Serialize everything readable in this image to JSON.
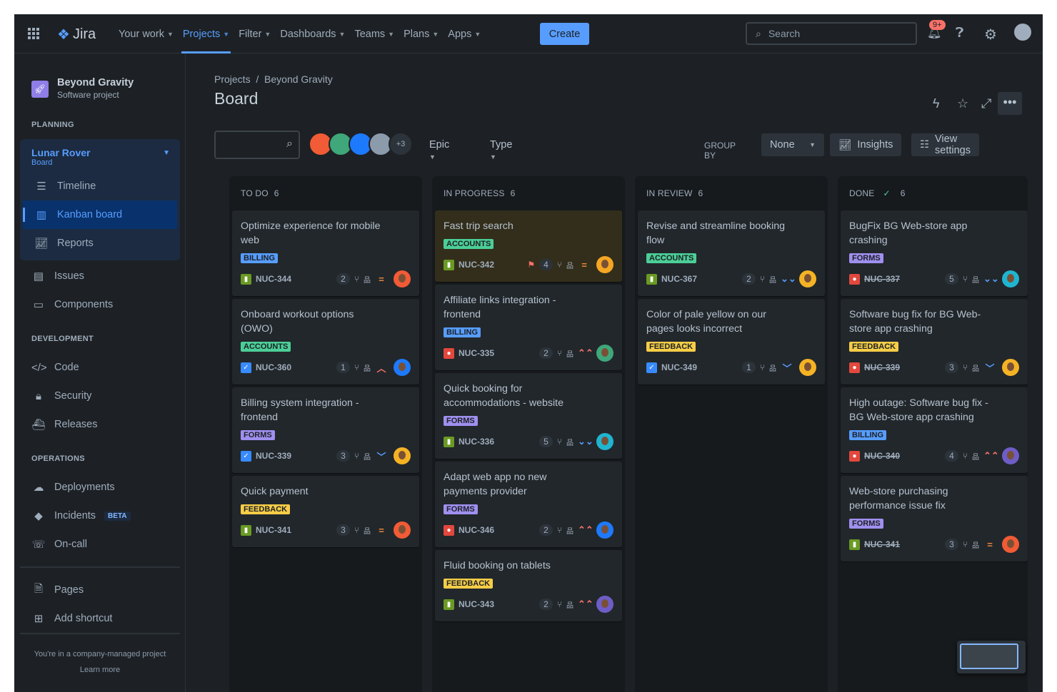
{
  "nav": {
    "logo": "Jira",
    "items": [
      {
        "label": "Your work"
      },
      {
        "label": "Projects",
        "active": true
      },
      {
        "label": "Filter"
      },
      {
        "label": "Dashboards"
      },
      {
        "label": "Teams"
      },
      {
        "label": "Plans"
      },
      {
        "label": "Apps"
      }
    ],
    "create": "Create",
    "search_placeholder": "Search",
    "notifications_badge": "9+"
  },
  "sidebar": {
    "project_name": "Beyond Gravity",
    "project_type": "Software project",
    "planning": "PLANNING",
    "board_name": "Lunar Rover",
    "board_sub": "Board",
    "timeline": "Timeline",
    "kanban": "Kanban board",
    "reports": "Reports",
    "issues": "Issues",
    "components": "Components",
    "development": "DEVELOPMENT",
    "code": "Code",
    "security": "Security",
    "releases": "Releases",
    "operations": "OPERATIONS",
    "deployments": "Deployments",
    "incidents": "Incidents",
    "beta": "BETA",
    "oncall": "On-call",
    "pages": "Pages",
    "add_shortcut": "Add shortcut",
    "managed": "You're in a company-managed project",
    "learn_more": "Learn more"
  },
  "header": {
    "crumb_projects": "Projects",
    "crumb_sep": "/",
    "crumb_project": "Beyond Gravity",
    "title": "Board"
  },
  "toolbar": {
    "more_avatars": "+3",
    "epic": "Epic",
    "type": "Type",
    "group_by": "GROUP BY",
    "group_value": "None",
    "insights": "Insights",
    "view_settings": "View settings"
  },
  "colors": {
    "BILLING": "#579dff",
    "ACCOUNTS": "#4bce97",
    "FORMS": "#9f8fef",
    "FEEDBACK": "#f5cd47",
    "story": "#6a9a23",
    "task": "#388bff",
    "bug": "#e2483d"
  },
  "columns": [
    {
      "title": "TO DO",
      "count": "6",
      "cards": [
        {
          "title": "Optimize experience for mobile web",
          "label": "BILLING",
          "type": "story",
          "key": "NUC-344",
          "count": "2",
          "priority": "medium",
          "avatar": "#f15b35"
        },
        {
          "title": "Onboard workout options (OWO)",
          "label": "ACCOUNTS",
          "type": "task",
          "key": "NUC-360",
          "count": "1",
          "priority": "high",
          "avatar": "#1d7afc"
        },
        {
          "title": "Billing system integration - frontend",
          "label": "FORMS",
          "type": "task",
          "key": "NUC-339",
          "count": "3",
          "priority": "low",
          "avatar": "#f5b324"
        },
        {
          "title": "Quick payment",
          "label": "FEEDBACK",
          "type": "story",
          "key": "NUC-341",
          "count": "3",
          "priority": "medium",
          "avatar": "#f15b35"
        }
      ]
    },
    {
      "title": "IN PROGRESS",
      "count": "6",
      "cards": [
        {
          "title": "Fast trip search",
          "label": "ACCOUNTS",
          "type": "story",
          "key": "NUC-342",
          "count": "4",
          "priority": "medium",
          "avatar": "#f5a623",
          "flagged": true,
          "highlighted": true
        },
        {
          "title": "Affiliate links integration - frontend",
          "label": "BILLING",
          "type": "bug",
          "key": "NUC-335",
          "count": "2",
          "priority": "highest",
          "avatar": "#3fa77a"
        },
        {
          "title": "Quick booking for accommodations - website",
          "label": "FORMS",
          "type": "story",
          "key": "NUC-336",
          "count": "5",
          "priority": "lowest",
          "avatar": "#1fb5d0"
        },
        {
          "title": "Adapt web app no new payments provider",
          "label": "FORMS",
          "type": "bug",
          "key": "NUC-346",
          "count": "2",
          "priority": "highest",
          "avatar": "#1d7afc"
        },
        {
          "title": "Fluid booking on tablets",
          "label": "FEEDBACK",
          "type": "story",
          "key": "NUC-343",
          "count": "2",
          "priority": "highest",
          "avatar": "#6e5dc6"
        }
      ]
    },
    {
      "title": "IN REVIEW",
      "count": "6",
      "cards": [
        {
          "title": "Revise and streamline booking flow",
          "label": "ACCOUNTS",
          "type": "story",
          "key": "NUC-367",
          "count": "2",
          "priority": "lowest",
          "avatar": "#f5b324"
        },
        {
          "title": "Color of pale yellow on our pages looks incorrect",
          "label": "FEEDBACK",
          "type": "task",
          "key": "NUC-349",
          "count": "1",
          "priority": "low",
          "avatar": "#f5b324"
        }
      ]
    },
    {
      "title": "DONE",
      "count": "6",
      "done": true,
      "cards": [
        {
          "title": "BugFix BG Web-store app crashing",
          "label": "FORMS",
          "type": "bug",
          "key": "NUC-337",
          "count": "5",
          "priority": "lowest",
          "avatar": "#1fb5d0"
        },
        {
          "title": "Software bug fix for BG Web-store app crashing",
          "label": "FEEDBACK",
          "type": "bug",
          "key": "NUC-339",
          "count": "3",
          "priority": "low",
          "avatar": "#f5b324"
        },
        {
          "title": "High outage: Software bug fix - BG Web-store app crashing",
          "label": "BILLING",
          "type": "bug",
          "key": "NUC-340",
          "count": "4",
          "priority": "highest",
          "avatar": "#6e5dc6"
        },
        {
          "title": "Web-store purchasing performance issue fix",
          "label": "FORMS",
          "type": "story",
          "key": "NUC-341",
          "count": "3",
          "priority": "medium",
          "avatar": "#f15b35"
        }
      ]
    }
  ]
}
